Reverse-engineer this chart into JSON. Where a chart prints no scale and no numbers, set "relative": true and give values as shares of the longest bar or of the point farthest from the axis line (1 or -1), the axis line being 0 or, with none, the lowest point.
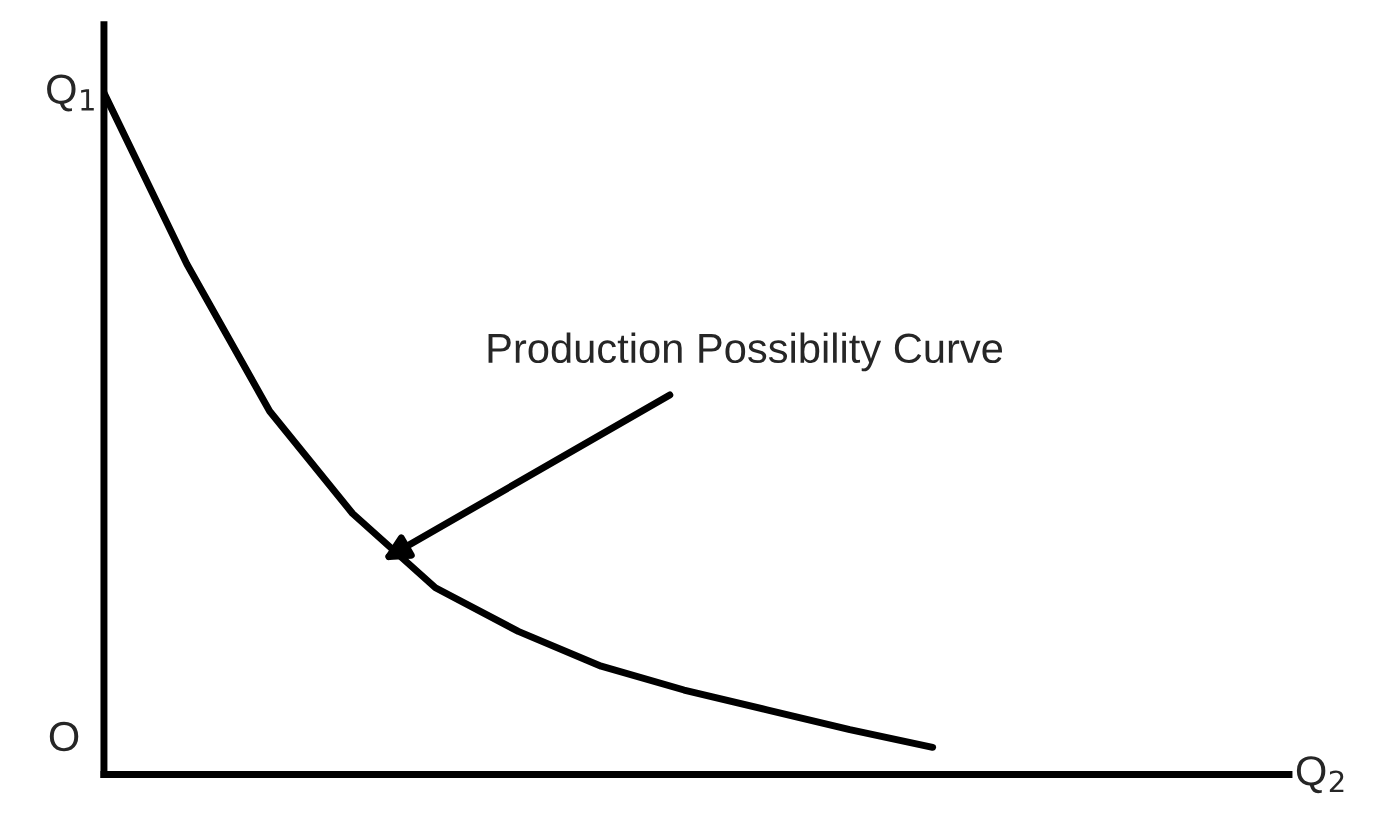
{
  "chart_data": {
    "type": "line",
    "relative": true,
    "xlabel": "Q$_{2}$",
    "ylabel": "Q$_{1}$",
    "categories": [
      null,
      null,
      null,
      null,
      null,
      null,
      null,
      null,
      null,
      null,
      null,
      null,
      null,
      null,
      null
    ],
    "series": [
      {
        "color": "#000000",
        "values": [
          1,
          0.749,
          0.533,
          0.383,
          0.274,
          0.21,
          0.159,
          0.124,
          0.095,
          0.066,
          0.04,
          null,
          null,
          null,
          null
        ]
      }
    ],
    "annotations": [
      "O",
      "Production Possibility Curve"
    ],
    "grid": false,
    "legend": false,
    "marker": "none",
    "line_style": "solid"
  }
}
